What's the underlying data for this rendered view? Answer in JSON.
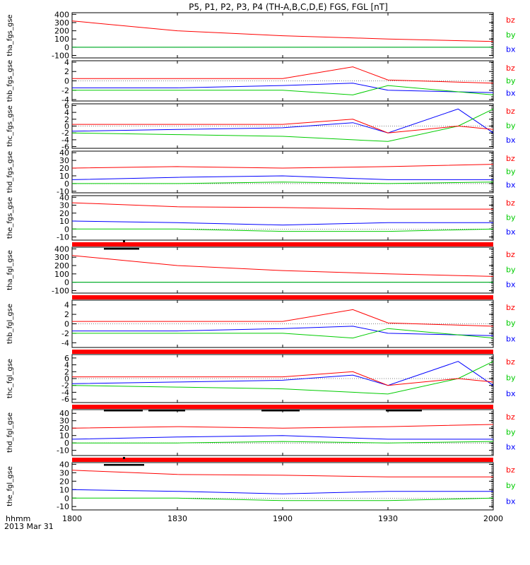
{
  "chart_data": {
    "type": "line",
    "title": "P5, P1, P2, P3, P4 (TH-A,B,C,D,E) FGS, FGL [nT]",
    "x_ticks": [
      "1800",
      "1830",
      "1900",
      "1930",
      "2000"
    ],
    "x_label_line1": "hhmm",
    "x_label_line2": "2013 Mar 31",
    "series_colors": {
      "bz": "#ff0000",
      "by": "#00cc00",
      "bx": "#0000ff"
    },
    "panels": [
      {
        "ylabel": "tha_fgs_gse",
        "yticks": [
          "400",
          "300",
          "200",
          "100",
          "0",
          "-100"
        ],
        "ylim": [
          -130,
          420
        ],
        "legend": [
          "bz",
          "by",
          "bx"
        ],
        "series": [
          {
            "name": "bz",
            "x": [
              "18:00",
              "18:30",
              "19:00",
              "19:30",
              "20:00"
            ],
            "values": [
              320,
              200,
              140,
              100,
              70
            ]
          },
          {
            "name": "by",
            "x": [
              "18:00",
              "20:00"
            ],
            "values": [
              0,
              0
            ]
          },
          {
            "name": "bx",
            "x": [
              "18:00",
              "20:00"
            ],
            "values": [
              0,
              0
            ]
          }
        ]
      },
      {
        "ylabel": "thb_fgs_gse",
        "yticks": [
          "4",
          "2",
          "0",
          "-2",
          "-4"
        ],
        "ylim": [
          -4.3,
          4.3
        ],
        "legend": [
          "bz",
          "by",
          "bx"
        ],
        "series": [
          {
            "name": "bz",
            "x": [
              "18:00",
              "18:30",
              "19:00",
              "19:20",
              "19:30",
              "20:00"
            ],
            "values": [
              0.5,
              0.5,
              0.5,
              3.0,
              0.2,
              -0.5
            ]
          },
          {
            "name": "by",
            "x": [
              "18:00",
              "18:30",
              "19:00",
              "19:20",
              "19:30",
              "20:00"
            ],
            "values": [
              -2.0,
              -2.0,
              -2.0,
              -3.0,
              -1.0,
              -3.0
            ]
          },
          {
            "name": "bx",
            "x": [
              "18:00",
              "18:30",
              "19:00",
              "19:20",
              "19:30",
              "20:00"
            ],
            "values": [
              -1.5,
              -1.5,
              -1.0,
              -0.5,
              -2.0,
              -2.5
            ]
          }
        ]
      },
      {
        "ylabel": "thc_fgs_gse",
        "yticks": [
          "6",
          "4",
          "2",
          "0",
          "-2",
          "-4",
          "-6"
        ],
        "ylim": [
          -6.5,
          6.5
        ],
        "legend": [
          "bz",
          "by",
          "bx"
        ],
        "series": [
          {
            "name": "bz",
            "x": [
              "18:00",
              "18:30",
              "19:00",
              "19:20",
              "19:30",
              "19:50",
              "20:00"
            ],
            "values": [
              0.5,
              0.5,
              0.5,
              2.0,
              -2.0,
              0.0,
              -1.0
            ]
          },
          {
            "name": "by",
            "x": [
              "18:00",
              "18:30",
              "19:00",
              "19:20",
              "19:30",
              "19:50",
              "20:00"
            ],
            "values": [
              -2.0,
              -2.5,
              -3.0,
              -4.0,
              -4.5,
              0.0,
              5.0
            ]
          },
          {
            "name": "bx",
            "x": [
              "18:00",
              "18:30",
              "19:00",
              "19:20",
              "19:30",
              "19:50",
              "20:00"
            ],
            "values": [
              -1.5,
              -1.0,
              -0.5,
              1.0,
              -2.0,
              5.0,
              -2.0
            ]
          }
        ]
      },
      {
        "ylabel": "thd_fgs_gse",
        "yticks": [
          "40",
          "30",
          "20",
          "10",
          "0",
          "-10"
        ],
        "ylim": [
          -12,
          42
        ],
        "legend": [
          "bz",
          "by",
          "bx"
        ],
        "series": [
          {
            "name": "bz",
            "x": [
              "18:00",
              "18:30",
              "19:00",
              "19:30",
              "20:00"
            ],
            "values": [
              20,
              22,
              20,
              22,
              25
            ]
          },
          {
            "name": "by",
            "x": [
              "18:00",
              "18:30",
              "19:00",
              "19:30",
              "20:00"
            ],
            "values": [
              0,
              0,
              2,
              0,
              2
            ]
          },
          {
            "name": "bx",
            "x": [
              "18:00",
              "18:30",
              "19:00",
              "19:30",
              "20:00"
            ],
            "values": [
              5,
              8,
              10,
              5,
              5
            ]
          }
        ]
      },
      {
        "ylabel": "the_fgs_gse",
        "yticks": [
          "40",
          "30",
          "20",
          "10",
          "0",
          "-10"
        ],
        "ylim": [
          -14,
          42
        ],
        "legend": [
          "bz",
          "by",
          "bx"
        ],
        "series": [
          {
            "name": "bz",
            "x": [
              "18:00",
              "18:30",
              "19:00",
              "19:30",
              "20:00"
            ],
            "values": [
              33,
              28,
              27,
              25,
              25
            ]
          },
          {
            "name": "by",
            "x": [
              "18:00",
              "18:30",
              "19:00",
              "19:30",
              "20:00"
            ],
            "values": [
              0,
              0,
              -3,
              -3,
              0
            ]
          },
          {
            "name": "bx",
            "x": [
              "18:00",
              "18:30",
              "19:00",
              "19:30",
              "20:00"
            ],
            "values": [
              10,
              8,
              5,
              8,
              8
            ]
          }
        ]
      },
      {
        "ylabel": "tha_fgl_gse",
        "yticks": [
          "400",
          "300",
          "200",
          "100",
          "0",
          "-100"
        ],
        "ylim": [
          -130,
          420
        ],
        "legend": [
          "bz",
          "by",
          "bx"
        ],
        "series": [
          {
            "name": "bz",
            "x": [
              "18:00",
              "18:30",
              "19:00",
              "19:30",
              "20:00"
            ],
            "values": [
              320,
              200,
              140,
              100,
              70
            ]
          },
          {
            "name": "by",
            "x": [
              "18:00",
              "20:00"
            ],
            "values": [
              0,
              0
            ]
          },
          {
            "name": "bx",
            "x": [
              "18:00",
              "20:00"
            ],
            "values": [
              0,
              0
            ]
          }
        ]
      },
      {
        "ylabel": "thb_fgl_gse",
        "yticks": [
          "4",
          "2",
          "0",
          "-2",
          "-4"
        ],
        "ylim": [
          -5,
          5
        ],
        "legend": [
          "bz",
          "by",
          "bx"
        ],
        "series": [
          {
            "name": "bz",
            "x": [
              "18:00",
              "18:30",
              "19:00",
              "19:20",
              "19:30",
              "20:00"
            ],
            "values": [
              0.5,
              0.5,
              0.5,
              3.0,
              0.2,
              -0.5
            ]
          },
          {
            "name": "by",
            "x": [
              "18:00",
              "18:30",
              "19:00",
              "19:20",
              "19:30",
              "20:00"
            ],
            "values": [
              -2.0,
              -2.0,
              -2.0,
              -3.0,
              -1.0,
              -3.0
            ]
          },
          {
            "name": "bx",
            "x": [
              "18:00",
              "18:30",
              "19:00",
              "19:20",
              "19:30",
              "20:00"
            ],
            "values": [
              -1.5,
              -1.5,
              -1.0,
              -0.5,
              -2.0,
              -2.5
            ]
          }
        ]
      },
      {
        "ylabel": "thc_fgl_gse",
        "yticks": [
          "6",
          "4",
          "2",
          "0",
          "-2",
          "-4",
          "-6"
        ],
        "ylim": [
          -7,
          7
        ],
        "legend": [
          "bz",
          "by",
          "bx"
        ],
        "series": [
          {
            "name": "bz",
            "x": [
              "18:00",
              "18:30",
              "19:00",
              "19:20",
              "19:30",
              "19:50",
              "20:00"
            ],
            "values": [
              0.5,
              0.5,
              0.5,
              2.0,
              -2.0,
              0.0,
              -1.0
            ]
          },
          {
            "name": "by",
            "x": [
              "18:00",
              "18:30",
              "19:00",
              "19:20",
              "19:30",
              "19:50",
              "20:00"
            ],
            "values": [
              -2.0,
              -2.5,
              -3.0,
              -4.0,
              -4.5,
              0.0,
              5.0
            ]
          },
          {
            "name": "bx",
            "x": [
              "18:00",
              "18:30",
              "19:00",
              "19:20",
              "19:30",
              "19:50",
              "20:00"
            ],
            "values": [
              -1.5,
              -1.0,
              -0.5,
              1.0,
              -2.0,
              5.0,
              -2.0
            ]
          }
        ]
      },
      {
        "ylabel": "thd_fgl_gse",
        "yticks": [
          "40",
          "30",
          "20",
          "10",
          "0",
          "-10"
        ],
        "ylim": [
          -17,
          45
        ],
        "legend": [
          "bz",
          "by",
          "bx"
        ],
        "series": [
          {
            "name": "bz",
            "x": [
              "18:00",
              "18:30",
              "19:00",
              "19:30",
              "20:00"
            ],
            "values": [
              20,
              22,
              20,
              22,
              25
            ]
          },
          {
            "name": "by",
            "x": [
              "18:00",
              "18:30",
              "19:00",
              "19:30",
              "20:00"
            ],
            "values": [
              0,
              0,
              2,
              0,
              2
            ]
          },
          {
            "name": "bx",
            "x": [
              "18:00",
              "18:30",
              "19:00",
              "19:30",
              "20:00"
            ],
            "values": [
              5,
              8,
              10,
              5,
              5
            ]
          }
        ]
      },
      {
        "ylabel": "the_fgl_gse",
        "yticks": [
          "40",
          "30",
          "20",
          "10",
          "0",
          "-10"
        ],
        "ylim": [
          -14,
          42
        ],
        "legend": [
          "bz",
          "by",
          "bx"
        ],
        "series": [
          {
            "name": "bz",
            "x": [
              "18:00",
              "18:30",
              "19:00",
              "19:30",
              "20:00"
            ],
            "values": [
              33,
              28,
              27,
              25,
              25
            ]
          },
          {
            "name": "by",
            "x": [
              "18:00",
              "18:30",
              "19:00",
              "19:30",
              "20:00"
            ],
            "values": [
              0,
              0,
              -3,
              -3,
              0
            ]
          },
          {
            "name": "bx",
            "x": [
              "18:00",
              "18:30",
              "19:00",
              "19:30",
              "20:00"
            ],
            "values": [
              10,
              8,
              5,
              8,
              8
            ]
          }
        ]
      }
    ]
  }
}
